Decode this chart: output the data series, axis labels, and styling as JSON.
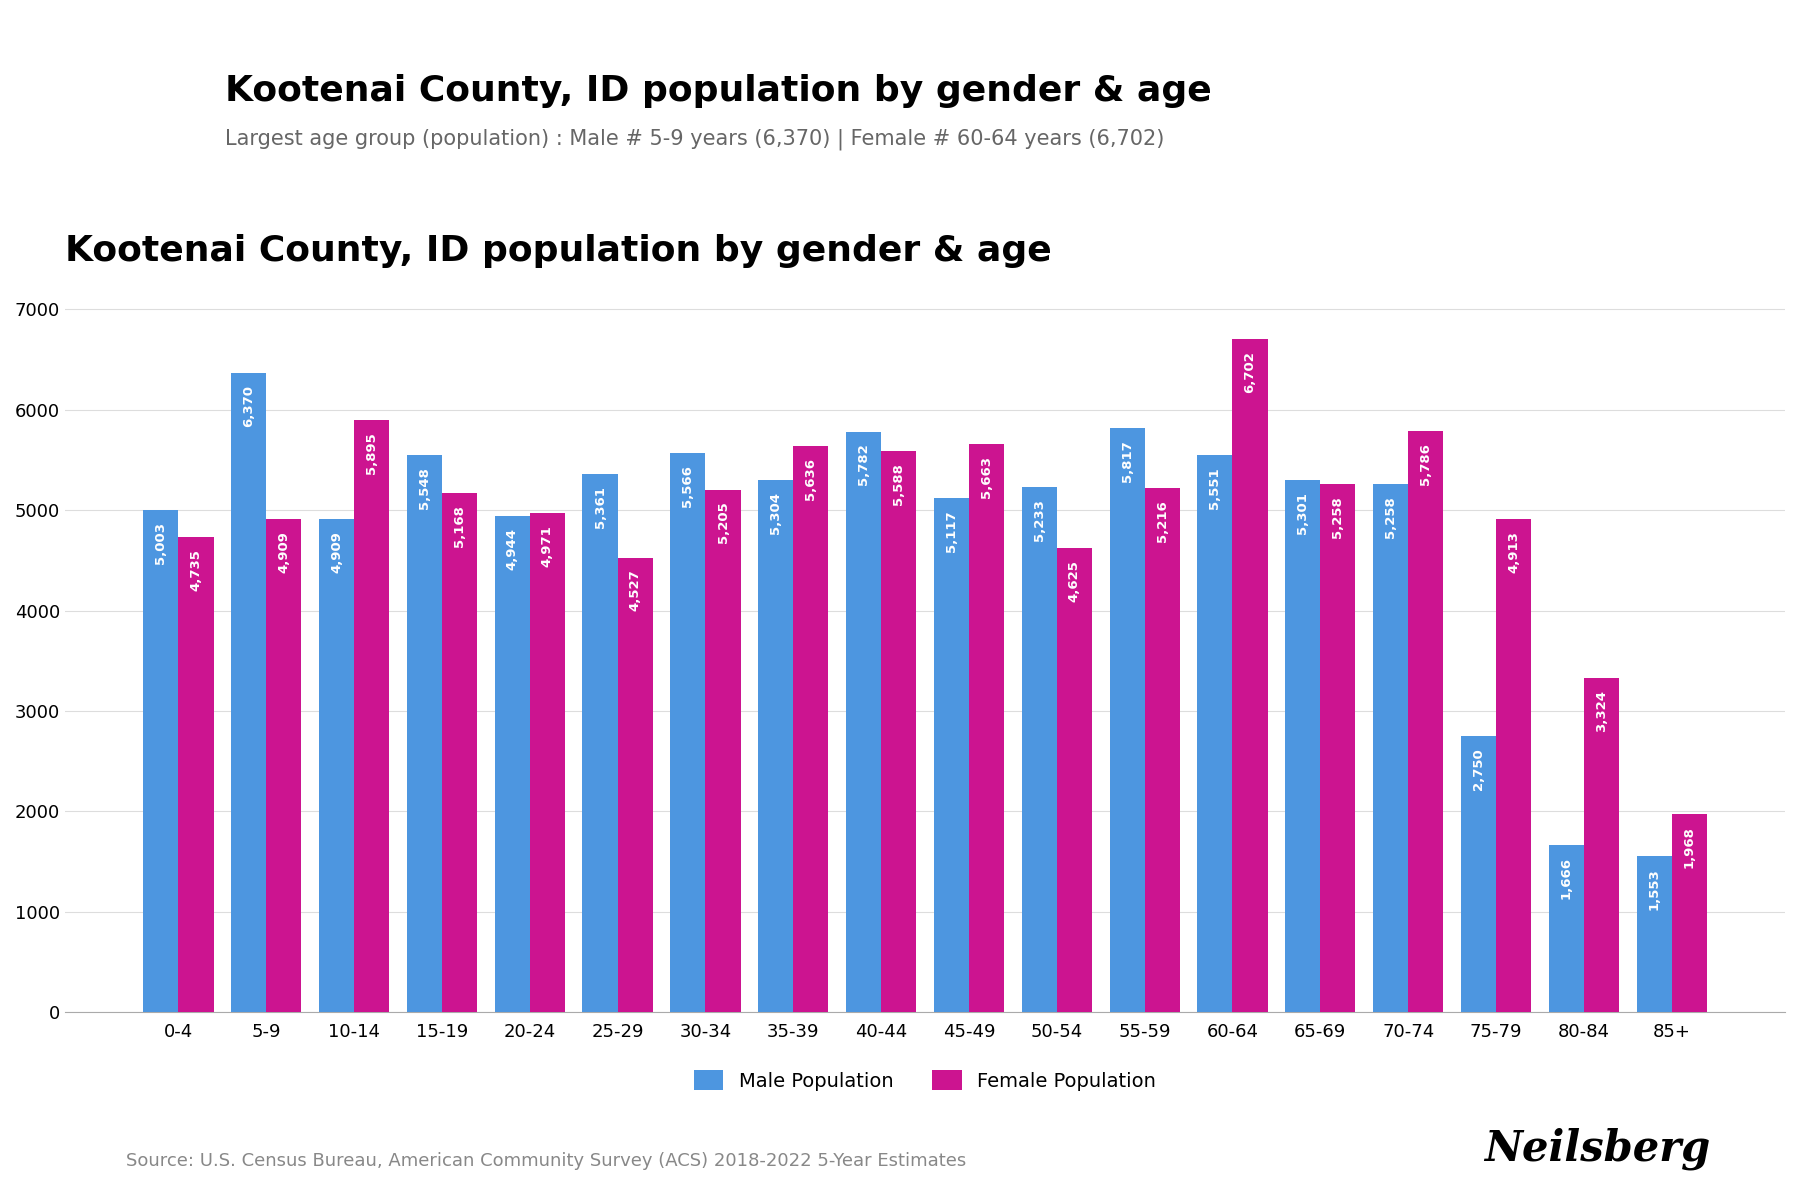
{
  "title": "Kootenai County, ID population by gender & age",
  "subtitle": "Largest age group (population) : Male # 5-9 years (6,370) | Female # 60-64 years (6,702)",
  "source": "Source: U.S. Census Bureau, American Community Survey (ACS) 2018-2022 5-Year Estimates",
  "age_groups": [
    "0-4",
    "5-9",
    "10-14",
    "15-19",
    "20-24",
    "25-29",
    "30-34",
    "35-39",
    "40-44",
    "45-49",
    "50-54",
    "55-59",
    "60-64",
    "65-69",
    "70-74",
    "75-79",
    "80-84",
    "85+"
  ],
  "male": [
    5003,
    6370,
    4909,
    5548,
    4944,
    5361,
    5566,
    5304,
    5782,
    5117,
    5233,
    5817,
    5551,
    5301,
    5258,
    2750,
    1666,
    1553
  ],
  "female": [
    4735,
    4909,
    5895,
    5168,
    4971,
    4527,
    5205,
    5636,
    5588,
    5663,
    4625,
    5216,
    6702,
    5258,
    5786,
    4913,
    3324,
    1968
  ],
  "male_color": "#4D96E0",
  "female_color": "#CC1490",
  "bar_label_color": "white",
  "bar_label_fontsize": 9.5,
  "title_fontsize": 26,
  "subtitle_fontsize": 15,
  "source_fontsize": 13,
  "legend_fontsize": 14,
  "tick_fontsize": 13,
  "ylim": [
    0,
    7400
  ],
  "yticks": [
    0,
    1000,
    2000,
    3000,
    4000,
    5000,
    6000,
    7000
  ],
  "background_color": "#ffffff",
  "grid_color": "#dddddd",
  "neilsberg_text": "Neilsberg",
  "neilsberg_fontsize": 30
}
